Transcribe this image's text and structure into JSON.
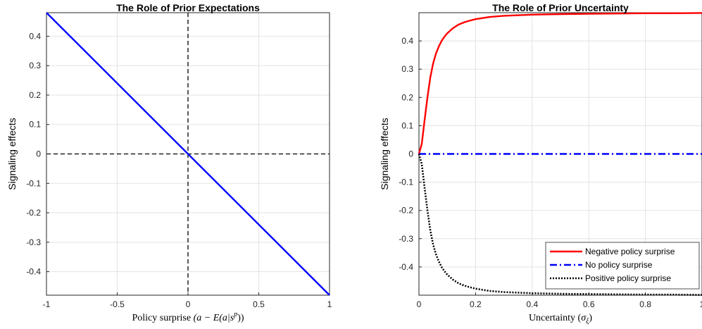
{
  "chart_data": [
    {
      "type": "line",
      "title": "The Role of Prior Expectations",
      "xlabel": "Policy surprise (a − E(a|s^p))",
      "xlabel_parts": {
        "prefix": "Policy surprise ",
        "formula": "(a − E(a|s",
        "sup": "p",
        "suffix": "))"
      },
      "ylabel": "Signaling effects",
      "xlim": [
        -1,
        1
      ],
      "ylim": [
        -0.48,
        0.48
      ],
      "grid": true,
      "xticks": [
        -1,
        -0.5,
        0,
        0.5,
        1
      ],
      "xtick_labels": [
        "-1",
        "-0.5",
        "0",
        "0.5",
        "1"
      ],
      "yticks": [
        -0.4,
        -0.3,
        -0.2,
        -0.1,
        0,
        0.1,
        0.2,
        0.3,
        0.4
      ],
      "ytick_labels": [
        "-0.4",
        "-0.3",
        "-0.2",
        "-0.1",
        "0",
        "0.1",
        "0.2",
        "0.3",
        "0.4"
      ],
      "series": [
        {
          "x": [
            -1,
            1
          ],
          "y": [
            0.48,
            -0.48
          ],
          "color": "#0000ff",
          "style": "solid"
        }
      ],
      "reference_lines": [
        {
          "orientation": "horizontal",
          "value": 0,
          "color": "#000000",
          "style": "dashed"
        },
        {
          "orientation": "vertical",
          "value": 0,
          "color": "#000000",
          "style": "dashed"
        }
      ]
    },
    {
      "type": "line",
      "title": "The Role of Prior Uncertainty",
      "xlabel": "Uncertainty (σ_ξ)",
      "xlabel_parts": {
        "prefix": "Uncertainty (",
        "formula": "σ",
        "sub": "ξ",
        "suffix": ")"
      },
      "ylabel": "Signaling effects",
      "xlim": [
        0,
        1
      ],
      "ylim": [
        -0.5,
        0.5
      ],
      "grid": true,
      "xticks": [
        0,
        0.2,
        0.4,
        0.6,
        0.8,
        1
      ],
      "xtick_labels": [
        "0",
        "0.2",
        "0.4",
        "0.6",
        "0.8",
        "1"
      ],
      "yticks": [
        -0.4,
        -0.3,
        -0.2,
        -0.1,
        0,
        0.1,
        0.2,
        0.3,
        0.4
      ],
      "ytick_labels": [
        "-0.4",
        "-0.3",
        "-0.2",
        "-0.1",
        "0",
        "0.1",
        "0.2",
        "0.3",
        "0.4"
      ],
      "legend_position": "bottom-right",
      "series": [
        {
          "name": "Negative policy surprise",
          "color": "#ff0000",
          "style": "solid",
          "x": [
            0,
            0.01,
            0.02,
            0.03,
            0.04,
            0.05,
            0.06,
            0.07,
            0.08,
            0.09,
            0.1,
            0.12,
            0.14,
            0.16,
            0.18,
            0.2,
            0.25,
            0.3,
            0.4,
            0.5,
            0.6,
            0.7,
            0.8,
            0.9,
            1
          ],
          "y": [
            0,
            0.036,
            0.12,
            0.2,
            0.27,
            0.32,
            0.355,
            0.38,
            0.4,
            0.415,
            0.427,
            0.445,
            0.458,
            0.466,
            0.472,
            0.477,
            0.485,
            0.489,
            0.493,
            0.495,
            0.496,
            0.497,
            0.498,
            0.498,
            0.499
          ]
        },
        {
          "name": "No policy surprise",
          "color": "#0000ff",
          "style": "dashdot",
          "x": [
            0,
            1
          ],
          "y": [
            0,
            0
          ]
        },
        {
          "name": "Positive policy surprise",
          "color": "#000000",
          "style": "dotted",
          "x": [
            0,
            0.01,
            0.02,
            0.03,
            0.04,
            0.05,
            0.06,
            0.07,
            0.08,
            0.09,
            0.1,
            0.12,
            0.14,
            0.16,
            0.18,
            0.2,
            0.25,
            0.3,
            0.4,
            0.5,
            0.6,
            0.7,
            0.8,
            0.9,
            1
          ],
          "y": [
            0,
            -0.036,
            -0.12,
            -0.2,
            -0.27,
            -0.32,
            -0.355,
            -0.38,
            -0.4,
            -0.415,
            -0.427,
            -0.445,
            -0.458,
            -0.466,
            -0.472,
            -0.477,
            -0.485,
            -0.489,
            -0.493,
            -0.495,
            -0.496,
            -0.497,
            -0.498,
            -0.498,
            -0.499
          ]
        }
      ]
    }
  ]
}
